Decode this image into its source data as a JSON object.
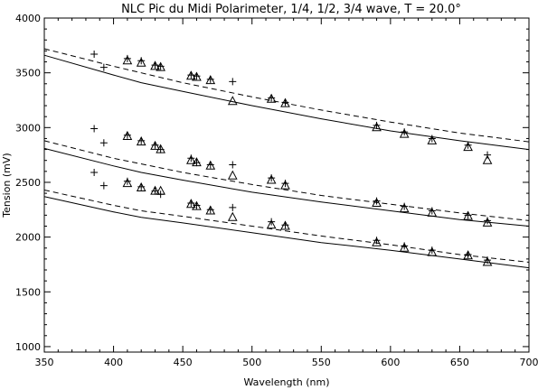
{
  "chart_data": {
    "type": "scatter",
    "title": "NLC Pic du Midi Polarimeter, 1/4, 1/2, 3/4 wave, T = 20.0°",
    "xlabel": "Wavelength (nm)",
    "ylabel": "Tension (mV)",
    "xlim": [
      350,
      700
    ],
    "ylim": [
      950,
      4000
    ],
    "xticks": [
      350,
      400,
      450,
      500,
      550,
      600,
      650,
      700
    ],
    "yticks": [
      1000,
      1500,
      2000,
      2500,
      3000,
      3500,
      4000
    ],
    "grid": false,
    "legend": "none",
    "colors": {
      "ink": "#000000",
      "background": "#ffffff"
    },
    "series": [
      {
        "style": "solid",
        "x": [
          350,
          400,
          420,
          450,
          500,
          550,
          600,
          650,
          700
        ],
        "y": [
          3660,
          3480,
          3410,
          3330,
          3200,
          3080,
          2970,
          2880,
          2800
        ]
      },
      {
        "style": "dashed",
        "x": [
          350,
          400,
          450,
          500,
          550,
          600,
          650,
          700
        ],
        "y": [
          3720,
          3560,
          3410,
          3280,
          3160,
          3050,
          2950,
          2870
        ]
      },
      {
        "style": "solid",
        "x": [
          350,
          400,
          420,
          450,
          500,
          550,
          600,
          650,
          700
        ],
        "y": [
          2810,
          2650,
          2590,
          2520,
          2410,
          2320,
          2240,
          2160,
          2100
        ]
      },
      {
        "style": "dashed",
        "x": [
          350,
          400,
          450,
          500,
          550,
          600,
          650,
          700
        ],
        "y": [
          2880,
          2720,
          2590,
          2480,
          2380,
          2300,
          2220,
          2150
        ]
      },
      {
        "style": "solid",
        "x": [
          350,
          400,
          420,
          450,
          500,
          550,
          600,
          650,
          700
        ],
        "y": [
          2370,
          2230,
          2180,
          2130,
          2040,
          1950,
          1880,
          1800,
          1720
        ]
      },
      {
        "style": "dashed",
        "x": [
          350,
          400,
          420,
          450,
          500,
          550,
          600,
          650,
          700
        ],
        "y": [
          2430,
          2290,
          2240,
          2190,
          2100,
          2010,
          1930,
          1840,
          1770
        ]
      },
      {
        "marker": "plus",
        "x": [
          386,
          393,
          410,
          420,
          430,
          434,
          456,
          460,
          470,
          486,
          514,
          524,
          590,
          610,
          630,
          656,
          670
        ],
        "y": [
          3670,
          3550,
          3630,
          3610,
          3570,
          3560,
          3480,
          3470,
          3440,
          3420,
          3270,
          3230,
          3020,
          2960,
          2900,
          2840,
          2750
        ]
      },
      {
        "marker": "triangle",
        "x": [
          410,
          420,
          430,
          434,
          456,
          460,
          470,
          486,
          514,
          524,
          590,
          610,
          630,
          656,
          670
        ],
        "y": [
          3610,
          3590,
          3560,
          3550,
          3470,
          3460,
          3430,
          3240,
          3260,
          3220,
          3000,
          2940,
          2880,
          2820,
          2700
        ]
      },
      {
        "marker": "plus",
        "x": [
          386,
          393,
          410,
          420,
          430,
          434,
          456,
          460,
          470,
          486,
          514,
          524,
          590,
          610,
          630,
          656,
          670
        ],
        "y": [
          2990,
          2860,
          2930,
          2880,
          2840,
          2800,
          2720,
          2680,
          2660,
          2660,
          2540,
          2490,
          2330,
          2280,
          2240,
          2200,
          2150
        ]
      },
      {
        "marker": "triangle",
        "x": [
          410,
          420,
          430,
          434,
          456,
          460,
          470,
          486,
          514,
          524,
          590,
          610,
          630,
          656,
          670
        ],
        "y": [
          2920,
          2870,
          2830,
          2800,
          2700,
          2680,
          2650,
          2560,
          2520,
          2470,
          2310,
          2260,
          2220,
          2190,
          2130
        ]
      },
      {
        "marker": "plus",
        "x": [
          386,
          393,
          410,
          420,
          430,
          434,
          456,
          460,
          470,
          486,
          514,
          524,
          590,
          610,
          630,
          656,
          670
        ],
        "y": [
          2590,
          2470,
          2510,
          2460,
          2420,
          2390,
          2310,
          2290,
          2250,
          2270,
          2140,
          2110,
          1970,
          1920,
          1880,
          1840,
          1790
        ]
      },
      {
        "marker": "triangle",
        "x": [
          410,
          420,
          430,
          434,
          456,
          460,
          470,
          486,
          514,
          524,
          590,
          610,
          630,
          656,
          670
        ],
        "y": [
          2490,
          2450,
          2420,
          2420,
          2300,
          2280,
          2240,
          2180,
          2110,
          2100,
          1950,
          1900,
          1860,
          1830,
          1770
        ]
      }
    ]
  }
}
